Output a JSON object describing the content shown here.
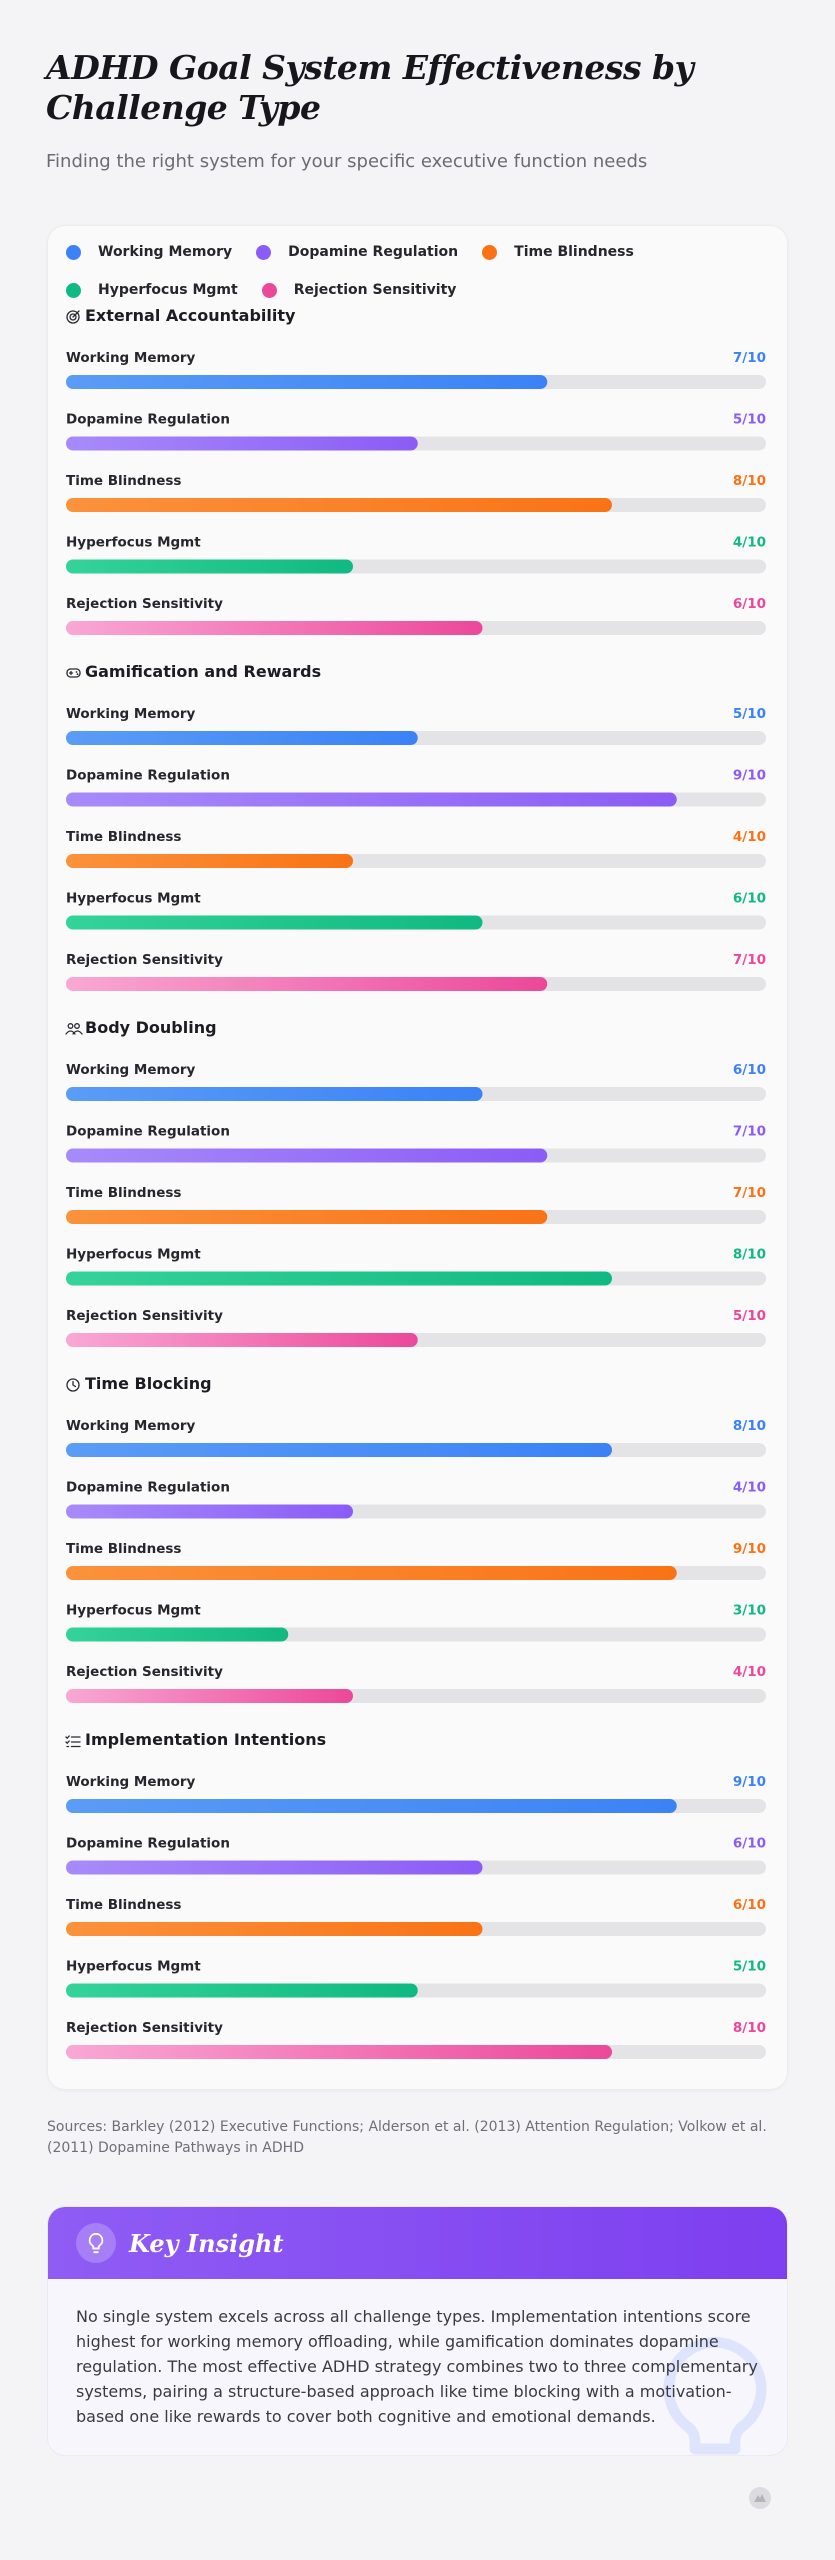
{
  "title": "ADHD Goal System Effectiveness by Challenge Type",
  "subtitle": "Finding the right system for your specific executive function needs",
  "sources": "Sources: Barkley (2012) Executive Functions; Alderson et al. (2013) Attention Regulation; Volkow et al. (2011) Dopamine Pathways in ADHD",
  "insight": {
    "title": "Key Insight",
    "icon": "lightbulb-icon",
    "body": "No single system excels across all challenge types. Implementation intentions score highest for working memory offloading, while gamification dominates dopamine regulation. The most effective ADHD strategy combines two to three complementary systems, pairing a structure-based approach like time blocking with a motivation-based one like rewards to cover both cognitive and emotional demands."
  },
  "colors": {
    "working_memory": [
      "#5b9cf6",
      "#3b82f6"
    ],
    "dopamine_regulation": [
      "#a78bfa",
      "#8b5cf6"
    ],
    "time_blindness": [
      "#fb923c",
      "#f97316"
    ],
    "hyperfocus_mgmt": [
      "#34d399",
      "#10b981"
    ],
    "rejection_sensitivity": [
      "#f9a8d4",
      "#ec4899"
    ],
    "track": "#e4e4e7"
  },
  "chart_data": {
    "type": "bar",
    "orientation": "horizontal",
    "xlim": [
      0,
      10
    ],
    "value_suffix": "/10",
    "legend_position": "top",
    "series": [
      {
        "name": "Working Memory",
        "key": "working_memory"
      },
      {
        "name": "Dopamine Regulation",
        "key": "dopamine_regulation"
      },
      {
        "name": "Time Blindness",
        "key": "time_blindness"
      },
      {
        "name": "Hyperfocus Mgmt",
        "key": "hyperfocus_mgmt"
      },
      {
        "name": "Rejection Sensitivity",
        "key": "rejection_sensitivity"
      }
    ],
    "groups": [
      {
        "name": "External Accountability",
        "icon": "target-icon",
        "values": [
          7,
          5,
          8,
          4,
          6
        ]
      },
      {
        "name": "Gamification and Rewards",
        "icon": "gamepad-icon",
        "values": [
          5,
          9,
          4,
          6,
          7
        ]
      },
      {
        "name": "Body Doubling",
        "icon": "people-icon",
        "values": [
          6,
          7,
          7,
          8,
          5
        ]
      },
      {
        "name": "Time Blocking",
        "icon": "clock-icon",
        "values": [
          8,
          4,
          9,
          3,
          4
        ]
      },
      {
        "name": "Implementation Intentions",
        "icon": "checklist-icon",
        "values": [
          9,
          6,
          6,
          5,
          8
        ]
      }
    ]
  }
}
